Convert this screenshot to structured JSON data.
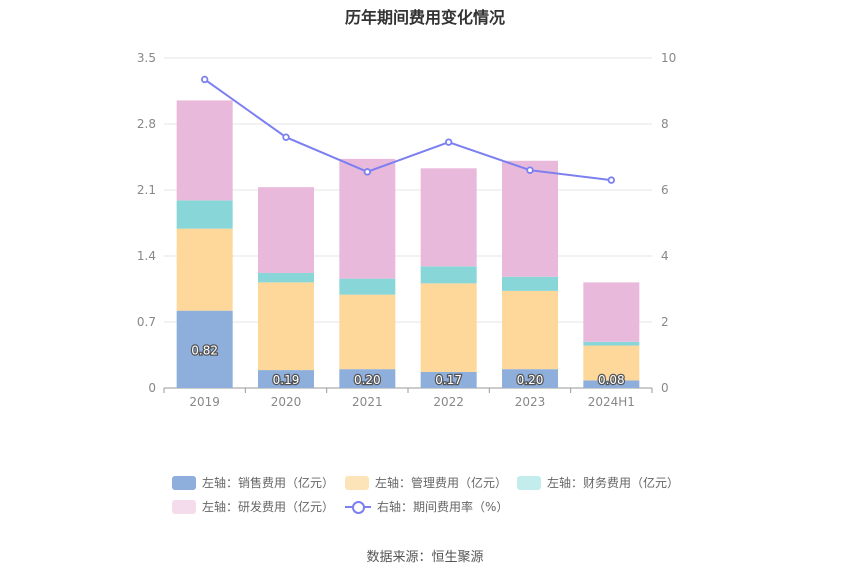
{
  "chart_data": {
    "type": "bar",
    "title": "历年期间费用变化情况",
    "categories": [
      "2019",
      "2020",
      "2021",
      "2022",
      "2023",
      "2024H1"
    ],
    "series": [
      {
        "name": "左轴：销售费用（亿元）",
        "axis": "left",
        "color": "#8eaedc",
        "values": [
          0.82,
          0.19,
          0.2,
          0.17,
          0.2,
          0.08
        ]
      },
      {
        "name": "左轴：管理费用（亿元）",
        "axis": "left",
        "color": "#fdd89a",
        "values": [
          0.87,
          0.93,
          0.79,
          0.94,
          0.83,
          0.37
        ]
      },
      {
        "name": "左轴：财务费用（亿元）",
        "axis": "left",
        "color": "#88d6d8",
        "values": [
          0.3,
          0.1,
          0.17,
          0.18,
          0.15,
          0.04
        ]
      },
      {
        "name": "左轴：研发费用（亿元）",
        "axis": "left",
        "color": "#e8b9da",
        "values": [
          1.06,
          0.91,
          1.27,
          1.04,
          1.23,
          0.63
        ]
      },
      {
        "name": "右轴：期间费用率（%）",
        "axis": "right",
        "type": "line",
        "color": "#7b7ff0",
        "values": [
          9.35,
          7.6,
          6.55,
          7.45,
          6.6,
          6.3
        ]
      }
    ],
    "data_labels_series": "左轴：销售费用（亿元）",
    "data_labels": [
      "0.82",
      "0.19",
      "0.20",
      "0.17",
      "0.20",
      "0.08"
    ],
    "y_left": {
      "ticks": [
        "0",
        "0.7",
        "1.4",
        "2.1",
        "2.8",
        "3.5"
      ],
      "ylim": [
        0,
        3.5
      ]
    },
    "y_right": {
      "ticks": [
        "0",
        "2",
        "4",
        "6",
        "8",
        "10"
      ],
      "ylim": [
        0,
        10
      ]
    },
    "grid": true,
    "legend_position": "bottom"
  },
  "legend": {
    "items": [
      {
        "label": "左轴：销售费用（亿元）",
        "color": "#8eaedc",
        "kind": "swatch"
      },
      {
        "label": "左轴：管理费用（亿元）",
        "color": "#fde3b8",
        "kind": "swatch"
      },
      {
        "label": "左轴：财务费用（亿元）",
        "color": "#c3ecec",
        "kind": "swatch"
      },
      {
        "label": "左轴：研发费用（亿元）",
        "color": "#f4dcec",
        "kind": "swatch"
      },
      {
        "label": "右轴：期间费用率（%）",
        "color": "#7b7ff0",
        "kind": "line"
      }
    ]
  },
  "source": "数据来源：恒生聚源"
}
